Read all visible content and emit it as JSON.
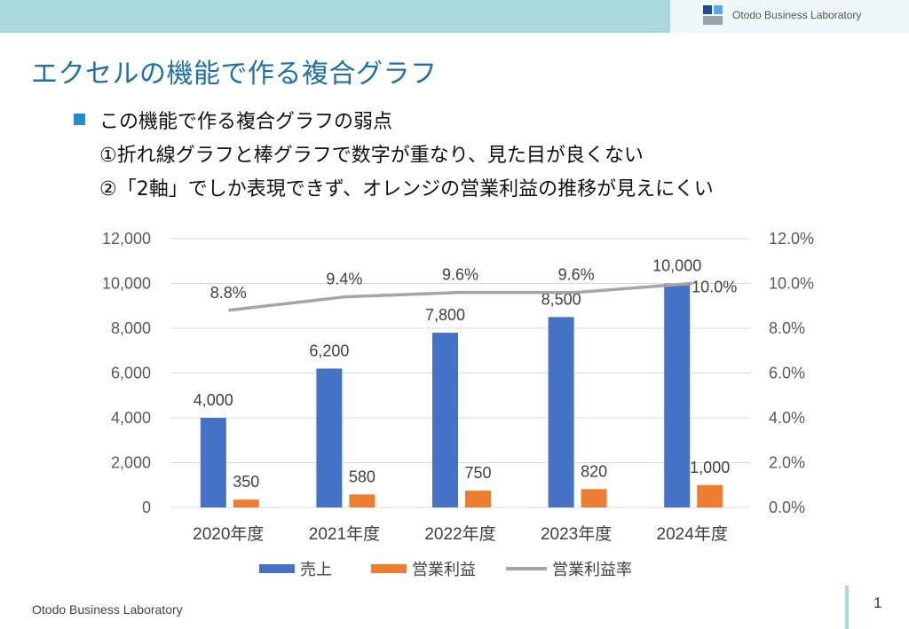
{
  "header": {
    "brand_text": "Otodo Business Laboratory",
    "bar_color": "#a9d9df"
  },
  "slide": {
    "title": "エクセルの機能で作る複合グラフ",
    "bullet_heading": "この機能で作る複合グラフの弱点",
    "point1": "①折れ線グラフと棒グラフで数字が重なり、見た目が良くない",
    "point2": "②「2軸」でしか表現できず、オレンジの営業利益の推移が見えにくい"
  },
  "footer": {
    "company": "Otodo Business Laboratory",
    "page_number": "1"
  },
  "chart_data": {
    "type": "bar",
    "categories": [
      "2020年度",
      "2021年度",
      "2022年度",
      "2023年度",
      "2024年度"
    ],
    "series": [
      {
        "name": "売上",
        "type": "bar",
        "axis": "left",
        "color": "#4472c4",
        "values": [
          4000,
          6200,
          7800,
          8500,
          10000
        ],
        "labels": [
          "4,000",
          "6,200",
          "7,800",
          "8,500",
          "10,000"
        ]
      },
      {
        "name": "営業利益",
        "type": "bar",
        "axis": "left",
        "color": "#ed7d31",
        "values": [
          350,
          580,
          750,
          820,
          1000
        ],
        "labels": [
          "350",
          "580",
          "750",
          "820",
          "1,000"
        ]
      },
      {
        "name": "営業利益率",
        "type": "line",
        "axis": "right",
        "color": "#a5a5a5",
        "values": [
          8.8,
          9.4,
          9.6,
          9.6,
          10.0
        ],
        "labels": [
          "8.8%",
          "9.4%",
          "9.6%",
          "9.6%",
          "10.0%"
        ]
      }
    ],
    "left_axis": {
      "min": 0,
      "max": 12000,
      "ticks": [
        "0",
        "2,000",
        "4,000",
        "6,000",
        "8,000",
        "10,000",
        "12,000"
      ]
    },
    "right_axis": {
      "min": 0,
      "max": 12,
      "ticks": [
        "0.0%",
        "2.0%",
        "4.0%",
        "6.0%",
        "8.0%",
        "10.0%",
        "12.0%"
      ]
    },
    "gridlines": true,
    "legend": "bottom"
  }
}
